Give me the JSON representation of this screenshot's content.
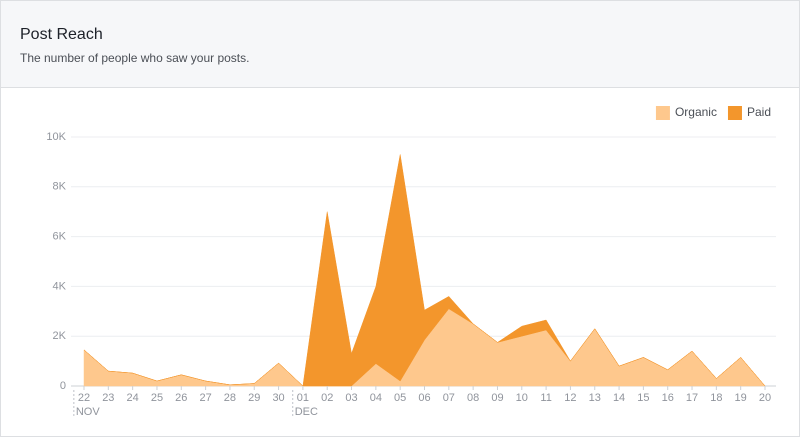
{
  "header": {
    "title": "Post Reach",
    "subtitle": "The number of people who saw your posts."
  },
  "chart_data": {
    "type": "stacked-area",
    "categories": [
      "22",
      "23",
      "24",
      "25",
      "26",
      "27",
      "28",
      "29",
      "30",
      "01",
      "02",
      "03",
      "04",
      "05",
      "06",
      "07",
      "08",
      "09",
      "10",
      "11",
      "12",
      "13",
      "14",
      "15",
      "16",
      "17",
      "18",
      "19",
      "20"
    ],
    "category_groups": [
      "NOV",
      null,
      null,
      null,
      null,
      null,
      null,
      null,
      null,
      "DEC",
      null,
      null,
      null,
      null,
      null,
      null,
      null,
      null,
      null,
      null,
      null,
      null,
      null,
      null,
      null,
      null,
      null,
      null,
      null
    ],
    "series": [
      {
        "name": "Organic",
        "color": "#fec88d",
        "values": [
          1450,
          600,
          520,
          200,
          450,
          200,
          50,
          100,
          920,
          0,
          0,
          0,
          900,
          200,
          1850,
          3100,
          2500,
          1750,
          2000,
          2250,
          1000,
          2300,
          800,
          1150,
          650,
          1400,
          300,
          1150,
          0
        ]
      },
      {
        "name": "Paid",
        "color": "#f3962c",
        "values": [
          0,
          0,
          0,
          0,
          0,
          0,
          0,
          0,
          0,
          0,
          7000,
          1300,
          3100,
          9100,
          1200,
          500,
          0,
          0,
          400,
          400,
          0,
          0,
          0,
          0,
          0,
          0,
          0,
          0,
          0
        ]
      }
    ],
    "ylim": [
      0,
      10000
    ],
    "yticks": [
      0,
      {
        "value": 2000,
        "label": "2K"
      },
      {
        "value": 4000,
        "label": "4K"
      },
      {
        "value": 6000,
        "label": "6K"
      },
      {
        "value": 8000,
        "label": "8K"
      },
      {
        "value": 10000,
        "label": "10K"
      }
    ],
    "grid": true,
    "legend": "top-right"
  }
}
